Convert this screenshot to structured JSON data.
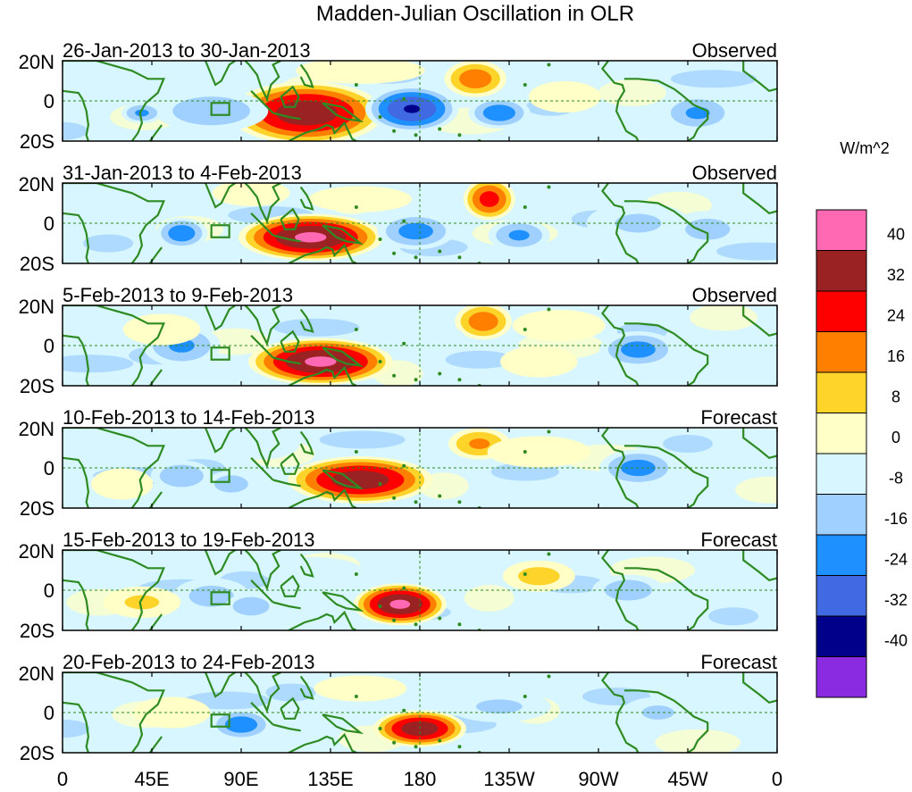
{
  "chart_data": {
    "type": "contour-map",
    "title": "Madden-Julian Oscillation in OLR",
    "variable": "OLR anomaly",
    "units": "W/m^2",
    "lon_range": [
      0,
      360
    ],
    "lat_range": [
      -20,
      20
    ],
    "x_ticks": [
      "0",
      "45E",
      "90E",
      "135E",
      "180",
      "135W",
      "90W",
      "45W",
      "0"
    ],
    "y_ticks": [
      "20N",
      "0",
      "20S"
    ],
    "colorbar": {
      "label": "W/m^2",
      "levels": [
        "40",
        "32",
        "24",
        "16",
        "8",
        "0",
        "-8",
        "-16",
        "-24",
        "-32",
        "-40"
      ],
      "colors": [
        "#ff69b4",
        "#9b2222",
        "#ff0000",
        "#ff7f00",
        "#ffd42a",
        "#ffffc7",
        "#d7f6ff",
        "#a0d0ff",
        "#1e90ff",
        "#4169e1",
        "#00008b",
        "#8a2be2"
      ]
    },
    "panels": [
      {
        "dates": "26-Jan-2013 to 30-Jan-2013",
        "status": "Observed",
        "anomalies": [
          {
            "lon": 123,
            "lat": -6,
            "w": 30,
            "h": 12,
            "peak": 38
          },
          {
            "lon": 208,
            "lat": 11,
            "w": 12,
            "h": 7,
            "peak": 22
          },
          {
            "lon": 253,
            "lat": 2,
            "w": 14,
            "h": 6,
            "peak": 6
          },
          {
            "lon": 176,
            "lat": -4,
            "w": 18,
            "h": 9,
            "peak": -33
          },
          {
            "lon": 220,
            "lat": -6,
            "w": 12,
            "h": 6,
            "peak": -22
          },
          {
            "lon": 320,
            "lat": -6,
            "w": 14,
            "h": 7,
            "peak": -18
          },
          {
            "lon": 75,
            "lat": -5,
            "w": 22,
            "h": 8,
            "peak": -15
          },
          {
            "lon": 40,
            "lat": -6,
            "w": 8,
            "h": 4,
            "peak": -18
          },
          {
            "lon": 150,
            "lat": 15,
            "w": 25,
            "h": 5,
            "peak": 5
          }
        ]
      },
      {
        "dates": "31-Jan-2013 to 4-Feb-2013",
        "status": "Observed",
        "anomalies": [
          {
            "lon": 125,
            "lat": -7,
            "w": 28,
            "h": 9,
            "peak": 42
          },
          {
            "lon": 215,
            "lat": 12,
            "w": 10,
            "h": 8,
            "peak": 28
          },
          {
            "lon": 95,
            "lat": 15,
            "w": 15,
            "h": 5,
            "peak": 8
          },
          {
            "lon": 60,
            "lat": -5,
            "w": 10,
            "h": 6,
            "peak": -22
          },
          {
            "lon": 178,
            "lat": -4,
            "w": 15,
            "h": 7,
            "peak": -20
          },
          {
            "lon": 230,
            "lat": -6,
            "w": 12,
            "h": 6,
            "peak": -18
          },
          {
            "lon": 290,
            "lat": 0,
            "w": 20,
            "h": 8,
            "peak": -10
          },
          {
            "lon": 325,
            "lat": -3,
            "w": 15,
            "h": 7,
            "peak": -12
          },
          {
            "lon": 150,
            "lat": 12,
            "w": 20,
            "h": 5,
            "peak": 6
          }
        ]
      },
      {
        "dates": "5-Feb-2013 to 9-Feb-2013",
        "status": "Observed",
        "anomalies": [
          {
            "lon": 130,
            "lat": -8,
            "w": 28,
            "h": 9,
            "peak": 42
          },
          {
            "lon": 212,
            "lat": 12,
            "w": 11,
            "h": 7,
            "peak": 22
          },
          {
            "lon": 290,
            "lat": -2,
            "w": 15,
            "h": 7,
            "peak": -20
          },
          {
            "lon": 60,
            "lat": 0,
            "w": 15,
            "h": 8,
            "peak": -18
          },
          {
            "lon": 240,
            "lat": -8,
            "w": 15,
            "h": 6,
            "peak": 6
          },
          {
            "lon": 50,
            "lat": 8,
            "w": 15,
            "h": 6,
            "peak": 6
          },
          {
            "lon": 180,
            "lat": 3,
            "w": 18,
            "h": 7,
            "peak": -8
          },
          {
            "lon": 250,
            "lat": 10,
            "w": 18,
            "h": 6,
            "peak": 5
          }
        ]
      },
      {
        "dates": "10-Feb-2013 to 14-Feb-2013",
        "status": "Forecast",
        "anomalies": [
          {
            "lon": 150,
            "lat": -6,
            "w": 28,
            "h": 9,
            "peak": 38
          },
          {
            "lon": 210,
            "lat": 12,
            "w": 12,
            "h": 6,
            "peak": 18
          },
          {
            "lon": 290,
            "lat": 0,
            "w": 15,
            "h": 7,
            "peak": -20
          },
          {
            "lon": 60,
            "lat": -4,
            "w": 12,
            "h": 6,
            "peak": -16
          },
          {
            "lon": 85,
            "lat": -8,
            "w": 10,
            "h": 5,
            "peak": -14
          },
          {
            "lon": 30,
            "lat": -8,
            "w": 12,
            "h": 6,
            "peak": 8
          },
          {
            "lon": 100,
            "lat": 12,
            "w": 15,
            "h": 6,
            "peak": -8
          },
          {
            "lon": 240,
            "lat": 8,
            "w": 20,
            "h": 6,
            "peak": 5
          }
        ]
      },
      {
        "dates": "15-Feb-2013 to 19-Feb-2013",
        "status": "Forecast",
        "anomalies": [
          {
            "lon": 170,
            "lat": -7,
            "w": 18,
            "h": 8,
            "peak": 42
          },
          {
            "lon": 240,
            "lat": 7,
            "w": 14,
            "h": 6,
            "peak": 12
          },
          {
            "lon": 285,
            "lat": 0,
            "w": 14,
            "h": 6,
            "peak": -14
          },
          {
            "lon": 75,
            "lat": -3,
            "w": 15,
            "h": 7,
            "peak": -12
          },
          {
            "lon": 95,
            "lat": -8,
            "w": 10,
            "h": 5,
            "peak": -16
          },
          {
            "lon": 40,
            "lat": -6,
            "w": 15,
            "h": 6,
            "peak": 10
          },
          {
            "lon": 125,
            "lat": 10,
            "w": 20,
            "h": 5,
            "peak": -8
          }
        ]
      },
      {
        "dates": "20-Feb-2013 to 24-Feb-2013",
        "status": "Forecast",
        "anomalies": [
          {
            "lon": 180,
            "lat": -8,
            "w": 18,
            "h": 7,
            "peak": 38
          },
          {
            "lon": 90,
            "lat": -6,
            "w": 12,
            "h": 6,
            "peak": -22
          },
          {
            "lon": 220,
            "lat": 3,
            "w": 20,
            "h": 6,
            "peak": -10
          },
          {
            "lon": 300,
            "lat": 0,
            "w": 14,
            "h": 6,
            "peak": -10
          },
          {
            "lon": 55,
            "lat": 0,
            "w": 15,
            "h": 6,
            "peak": 8
          },
          {
            "lon": 150,
            "lat": 12,
            "w": 18,
            "h": 5,
            "peak": 6
          }
        ]
      }
    ]
  }
}
